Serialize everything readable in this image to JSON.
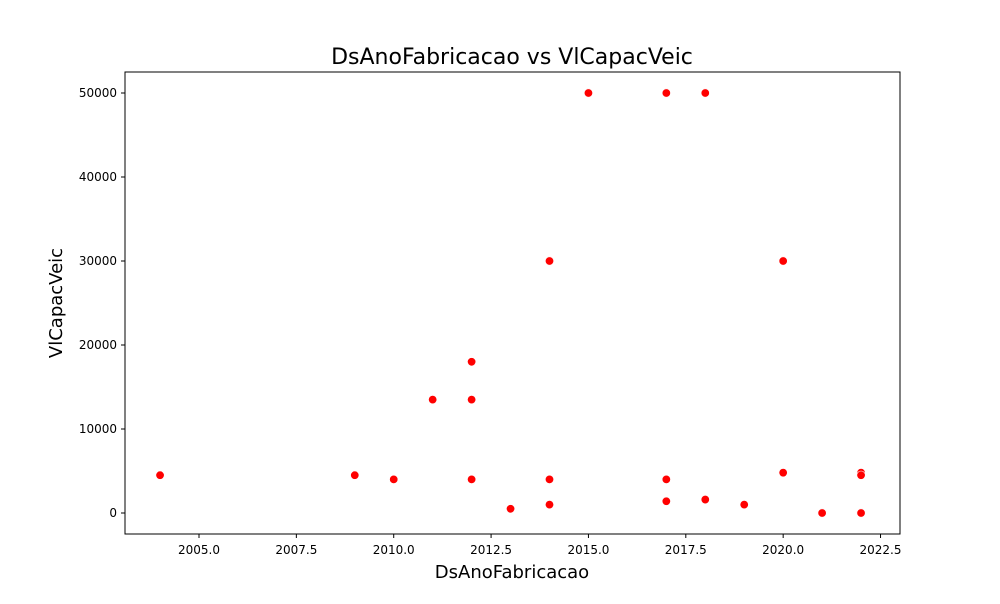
{
  "chart_data": {
    "type": "scatter",
    "title": "DsAnoFabricacao vs VlCapacVeic",
    "xlabel": "DsAnoFabricacao",
    "ylabel": "VlCapacVeic",
    "xlim": [
      2003.1,
      2023.0
    ],
    "ylim": [
      -2500,
      52500
    ],
    "xticks": [
      2005.0,
      2007.5,
      2010.0,
      2012.5,
      2015.0,
      2017.5,
      2020.0,
      2022.5
    ],
    "xtick_labels": [
      "2005.0",
      "2007.5",
      "2010.0",
      "2012.5",
      "2015.0",
      "2017.5",
      "2020.0",
      "2022.5"
    ],
    "yticks": [
      0,
      10000,
      20000,
      30000,
      40000,
      50000
    ],
    "ytick_labels": [
      "0",
      "10000",
      "20000",
      "30000",
      "40000",
      "50000"
    ],
    "grid": false,
    "marker_color": "#ff0000",
    "points": [
      {
        "x": 2004,
        "y": 4500
      },
      {
        "x": 2009,
        "y": 4500
      },
      {
        "x": 2010,
        "y": 4000
      },
      {
        "x": 2011,
        "y": 13500
      },
      {
        "x": 2012,
        "y": 18000
      },
      {
        "x": 2012,
        "y": 13500
      },
      {
        "x": 2012,
        "y": 4000
      },
      {
        "x": 2013,
        "y": 500
      },
      {
        "x": 2014,
        "y": 30000
      },
      {
        "x": 2014,
        "y": 4000
      },
      {
        "x": 2014,
        "y": 1000
      },
      {
        "x": 2015,
        "y": 50000
      },
      {
        "x": 2017,
        "y": 50000
      },
      {
        "x": 2017,
        "y": 4000
      },
      {
        "x": 2017,
        "y": 1400
      },
      {
        "x": 2018,
        "y": 50000
      },
      {
        "x": 2018,
        "y": 1600
      },
      {
        "x": 2019,
        "y": 1000
      },
      {
        "x": 2020,
        "y": 30000
      },
      {
        "x": 2020,
        "y": 4800
      },
      {
        "x": 2021,
        "y": 0
      },
      {
        "x": 2022,
        "y": 4800
      },
      {
        "x": 2022,
        "y": 4500
      },
      {
        "x": 2022,
        "y": 0
      }
    ]
  }
}
